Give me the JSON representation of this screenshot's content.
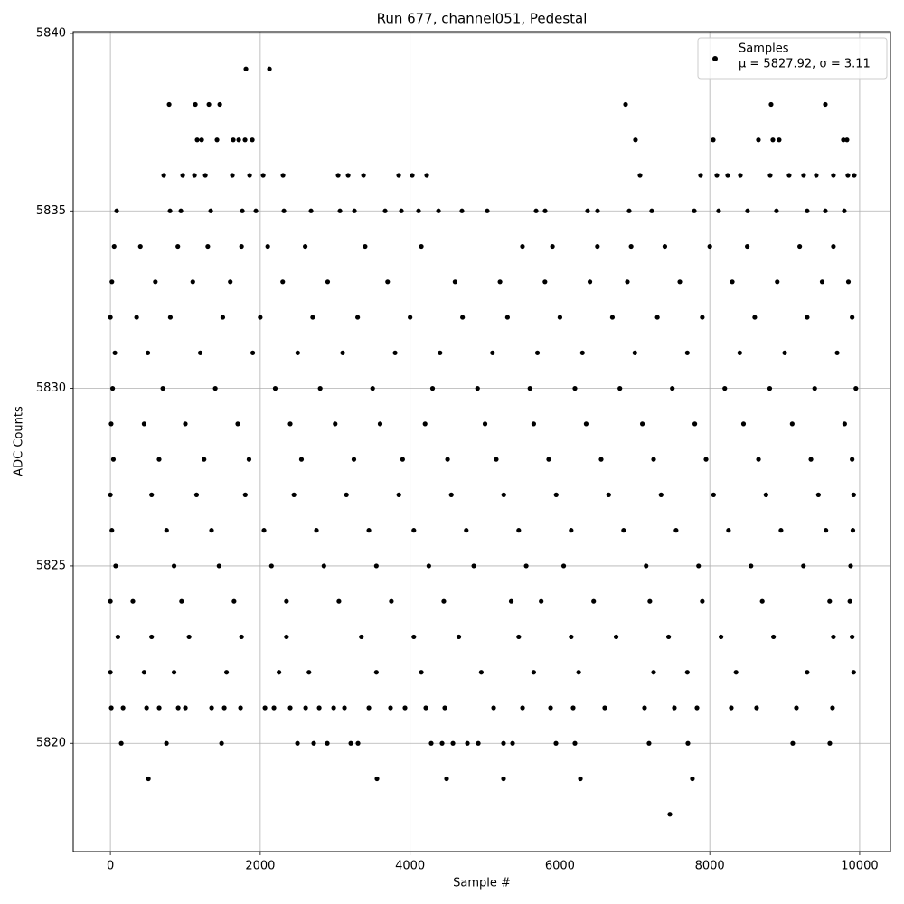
{
  "chart_data": {
    "type": "scatter",
    "title": "Run 677, channel051, Pedestal",
    "x_label": "Sample #",
    "y_label": "ADC Counts",
    "xlim": [
      -496,
      10411
    ],
    "ylim": [
      5816.95,
      5840.05
    ],
    "xticks": [
      0,
      2000,
      4000,
      6000,
      8000,
      10000
    ],
    "yticks": [
      5820,
      5825,
      5830,
      5835,
      5840
    ],
    "grid": true,
    "legend": "upper right",
    "legend_text": "μ = 5827.92, σ = 3.11",
    "x": [
      1809,
      2123,
      784,
      1134,
      1315,
      1460,
      6876,
      8818,
      9542,
      1158,
      1218,
      1423,
      1640,
      1713,
      1797,
      1894,
      7008,
      8046,
      8649,
      8842,
      8926,
      9783,
      9831,
      712,
      965,
      1122,
      1267,
      1628,
      1858,
      2039,
      2304,
      3040,
      3173,
      3378,
      3848,
      4029,
      4222,
      7069,
      7877,
      8094,
      8239,
      8408,
      8806,
      9059,
      9252,
      9421,
      9650,
      9843,
      9928,
      84,
      796,
      941,
      1339,
      1761,
      1942,
      2316,
      2678,
      3064,
      3257,
      3667,
      3884,
      4113,
      4379,
      4692,
      5030,
      5682,
      5802,
      6369,
      6502,
      6924,
      7225,
      7793,
      8118,
      8504,
      8890,
      9300,
      9542,
      9795,
      50,
      400,
      900,
      1300,
      1750,
      2100,
      2600,
      3400,
      4150,
      5500,
      5900,
      6500,
      6950,
      7400,
      8000,
      8500,
      9200,
      9650,
      20,
      600,
      1100,
      1600,
      2300,
      2900,
      3700,
      4600,
      5200,
      5800,
      6400,
      6900,
      7600,
      8300,
      8900,
      9500,
      9850,
      0,
      350,
      800,
      1500,
      2000,
      2700,
      3300,
      4000,
      4700,
      5300,
      6000,
      6700,
      7300,
      7900,
      8600,
      9300,
      9900,
      60,
      500,
      1200,
      1900,
      2500,
      3100,
      3800,
      4400,
      5100,
      5700,
      6300,
      7000,
      7700,
      8400,
      9000,
      9700,
      30,
      700,
      1400,
      2200,
      2800,
      3500,
      4300,
      4900,
      5600,
      6200,
      6800,
      7500,
      8200,
      8800,
      9400,
      9950,
      10,
      450,
      1000,
      1700,
      2400,
      3000,
      3600,
      4200,
      5000,
      5650,
      6350,
      7100,
      7800,
      8450,
      9100,
      9800,
      40,
      650,
      1250,
      1850,
      2550,
      3250,
      3900,
      4500,
      5150,
      5850,
      6550,
      7250,
      7950,
      8650,
      9350,
      9900,
      0,
      550,
      1150,
      1800,
      2450,
      3150,
      3850,
      4550,
      5250,
      5950,
      6650,
      7350,
      8050,
      8750,
      9450,
      9920,
      20,
      750,
      1350,
      2050,
      2750,
      3450,
      4050,
      4750,
      5450,
      6150,
      6850,
      7550,
      8250,
      8950,
      9550,
      9910,
      70,
      850,
      1450,
      2150,
      2850,
      3550,
      4250,
      4850,
      5550,
      6050,
      7150,
      7850,
      8550,
      9250,
      9880,
      0,
      300,
      950,
      1650,
      2350,
      3050,
      3750,
      4450,
      5350,
      5750,
      6450,
      7200,
      7900,
      8700,
      9600,
      9870,
      100,
      550,
      1050,
      1750,
      2350,
      3350,
      4050,
      4650,
      5450,
      6150,
      6750,
      7450,
      8150,
      8850,
      9650,
      9900,
      0,
      450,
      850,
      1550,
      2250,
      2650,
      3550,
      4150,
      4950,
      5650,
      6250,
      7250,
      7700,
      8350,
      9300,
      9920,
      12,
      169,
      483,
      651,
      905,
      1001,
      1351,
      1520,
      1737,
      2063,
      2183,
      2400,
      2606,
      2787,
      2980,
      3124,
      3450,
      3739,
      3932,
      4210,
      4463,
      5115,
      5501,
      5875,
      6176,
      6598,
      7129,
      7527,
      7829,
      8287,
      8625,
      9156,
      9638,
      145,
      748,
      1484,
      2497,
      2714,
      2895,
      3209,
      3305,
      4282,
      4427,
      4572,
      4765,
      4910,
      5247,
      5368,
      5947,
      6200,
      7189,
      7708,
      9107,
      9602,
      507,
      3558,
      4487,
      5247,
      6273,
      7768,
      7467
    ],
    "series": [
      {
        "name": "Samples",
        "color": "#000000",
        "values": [
          5839,
          5839,
          5838,
          5838,
          5838,
          5838,
          5838,
          5838,
          5838,
          5837,
          5837,
          5837,
          5837,
          5837,
          5837,
          5837,
          5837,
          5837,
          5837,
          5837,
          5837,
          5837,
          5837,
          5836,
          5836,
          5836,
          5836,
          5836,
          5836,
          5836,
          5836,
          5836,
          5836,
          5836,
          5836,
          5836,
          5836,
          5836,
          5836,
          5836,
          5836,
          5836,
          5836,
          5836,
          5836,
          5836,
          5836,
          5836,
          5836,
          5835,
          5835,
          5835,
          5835,
          5835,
          5835,
          5835,
          5835,
          5835,
          5835,
          5835,
          5835,
          5835,
          5835,
          5835,
          5835,
          5835,
          5835,
          5835,
          5835,
          5835,
          5835,
          5835,
          5835,
          5835,
          5835,
          5835,
          5835,
          5835,
          5834,
          5834,
          5834,
          5834,
          5834,
          5834,
          5834,
          5834,
          5834,
          5834,
          5834,
          5834,
          5834,
          5834,
          5834,
          5834,
          5834,
          5834,
          5833,
          5833,
          5833,
          5833,
          5833,
          5833,
          5833,
          5833,
          5833,
          5833,
          5833,
          5833,
          5833,
          5833,
          5833,
          5833,
          5833,
          5832,
          5832,
          5832,
          5832,
          5832,
          5832,
          5832,
          5832,
          5832,
          5832,
          5832,
          5832,
          5832,
          5832,
          5832,
          5832,
          5832,
          5831,
          5831,
          5831,
          5831,
          5831,
          5831,
          5831,
          5831,
          5831,
          5831,
          5831,
          5831,
          5831,
          5831,
          5831,
          5831,
          5830,
          5830,
          5830,
          5830,
          5830,
          5830,
          5830,
          5830,
          5830,
          5830,
          5830,
          5830,
          5830,
          5830,
          5830,
          5830,
          5829,
          5829,
          5829,
          5829,
          5829,
          5829,
          5829,
          5829,
          5829,
          5829,
          5829,
          5829,
          5829,
          5829,
          5829,
          5829,
          5828,
          5828,
          5828,
          5828,
          5828,
          5828,
          5828,
          5828,
          5828,
          5828,
          5828,
          5828,
          5828,
          5828,
          5828,
          5828,
          5827,
          5827,
          5827,
          5827,
          5827,
          5827,
          5827,
          5827,
          5827,
          5827,
          5827,
          5827,
          5827,
          5827,
          5827,
          5827,
          5826,
          5826,
          5826,
          5826,
          5826,
          5826,
          5826,
          5826,
          5826,
          5826,
          5826,
          5826,
          5826,
          5826,
          5826,
          5826,
          5825,
          5825,
          5825,
          5825,
          5825,
          5825,
          5825,
          5825,
          5825,
          5825,
          5825,
          5825,
          5825,
          5825,
          5825,
          5824,
          5824,
          5824,
          5824,
          5824,
          5824,
          5824,
          5824,
          5824,
          5824,
          5824,
          5824,
          5824,
          5824,
          5824,
          5824,
          5823,
          5823,
          5823,
          5823,
          5823,
          5823,
          5823,
          5823,
          5823,
          5823,
          5823,
          5823,
          5823,
          5823,
          5823,
          5823,
          5822,
          5822,
          5822,
          5822,
          5822,
          5822,
          5822,
          5822,
          5822,
          5822,
          5822,
          5822,
          5822,
          5822,
          5822,
          5822,
          5821,
          5821,
          5821,
          5821,
          5821,
          5821,
          5821,
          5821,
          5821,
          5821,
          5821,
          5821,
          5821,
          5821,
          5821,
          5821,
          5821,
          5821,
          5821,
          5821,
          5821,
          5821,
          5821,
          5821,
          5821,
          5821,
          5821,
          5821,
          5821,
          5821,
          5821,
          5821,
          5821,
          5820,
          5820,
          5820,
          5820,
          5820,
          5820,
          5820,
          5820,
          5820,
          5820,
          5820,
          5820,
          5820,
          5820,
          5820,
          5820,
          5820,
          5820,
          5820,
          5820,
          5820,
          5819,
          5819,
          5819,
          5819,
          5819,
          5819,
          5818
        ]
      }
    ]
  }
}
